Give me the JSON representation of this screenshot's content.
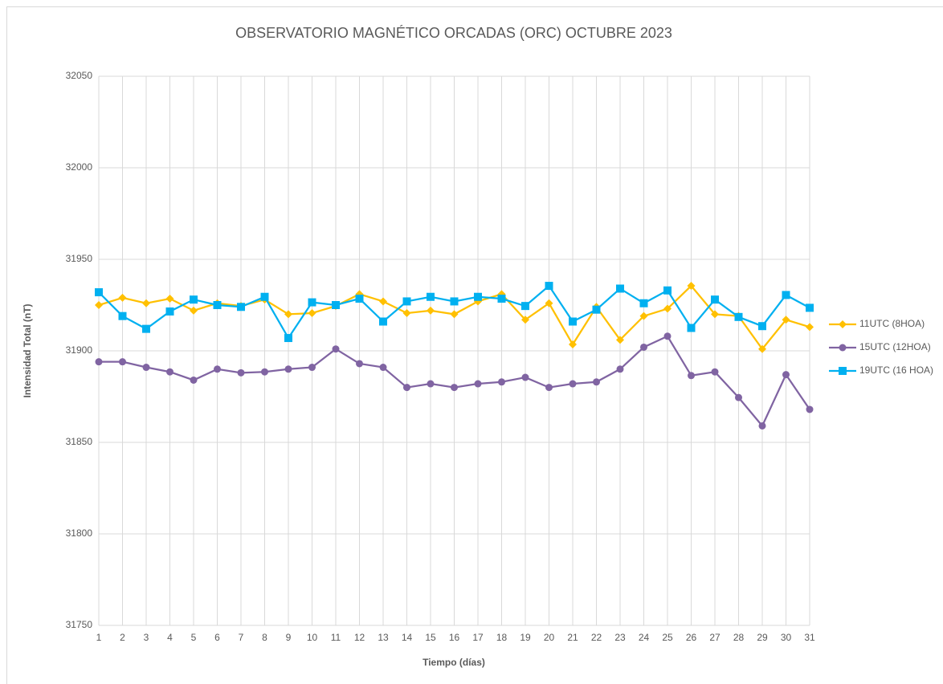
{
  "chart_data": {
    "type": "line",
    "title": "OBSERVATORIO MAGNÉTICO ORCADAS (ORC) OCTUBRE 2023",
    "x_label": "Tiempo (días)",
    "y_label": "Intensidad Total (nT)",
    "x": [
      1,
      2,
      3,
      4,
      5,
      6,
      7,
      8,
      9,
      10,
      11,
      12,
      13,
      14,
      15,
      16,
      17,
      18,
      19,
      20,
      21,
      22,
      23,
      24,
      25,
      26,
      27,
      28,
      29,
      30,
      31
    ],
    "xlim": [
      1,
      31
    ],
    "xticks": [
      1,
      2,
      3,
      4,
      5,
      6,
      7,
      8,
      9,
      10,
      11,
      12,
      13,
      14,
      15,
      16,
      17,
      18,
      19,
      20,
      21,
      22,
      23,
      24,
      25,
      26,
      27,
      28,
      29,
      30,
      31
    ],
    "ylim": [
      31750,
      32050
    ],
    "yticks": [
      31750,
      31800,
      31850,
      31900,
      31950,
      32000,
      32050
    ],
    "grid": true,
    "legend": "right",
    "series": [
      {
        "name": "11UTC (8HOA)",
        "color": "#FFC000",
        "marker": "diamond",
        "values": [
          31925,
          31929,
          31926,
          31928.5,
          31922,
          31926,
          31924.5,
          31928,
          31920,
          31920.6,
          31924.5,
          31931,
          31927,
          31920.6,
          31922,
          31920,
          31927,
          31931,
          31917,
          31926,
          31903.5,
          31924,
          31906,
          31919,
          31923,
          31935.5,
          31920,
          31919,
          31901,
          31917,
          31913
        ]
      },
      {
        "name": "15UTC (12HOA)",
        "color": "#8064A2",
        "marker": "circle",
        "values": [
          31894,
          31894,
          31891,
          31888.5,
          31884,
          31890,
          31888,
          31888.5,
          31890,
          31891,
          31901,
          31893,
          31891,
          31880,
          31882,
          31880,
          31882,
          31883,
          31885.5,
          31880,
          31882,
          31883,
          31890,
          31902,
          31908,
          31886.5,
          31888.5,
          31874.5,
          31859,
          31887,
          31868
        ]
      },
      {
        "name": "19UTC (16 HOA)",
        "color": "#00B0F0",
        "marker": "square",
        "values": [
          31932,
          31919,
          31912,
          31921.5,
          31928,
          31925,
          31924,
          31929.5,
          31907,
          31926.5,
          31925,
          31928.5,
          31916,
          31927,
          31929.5,
          31927,
          31929.5,
          31928.5,
          31924.5,
          31935.5,
          31916,
          31922.5,
          31934,
          31926,
          31933,
          31912.5,
          31928,
          31918.5,
          31913.5,
          31930.5,
          31923.5
        ]
      }
    ]
  }
}
